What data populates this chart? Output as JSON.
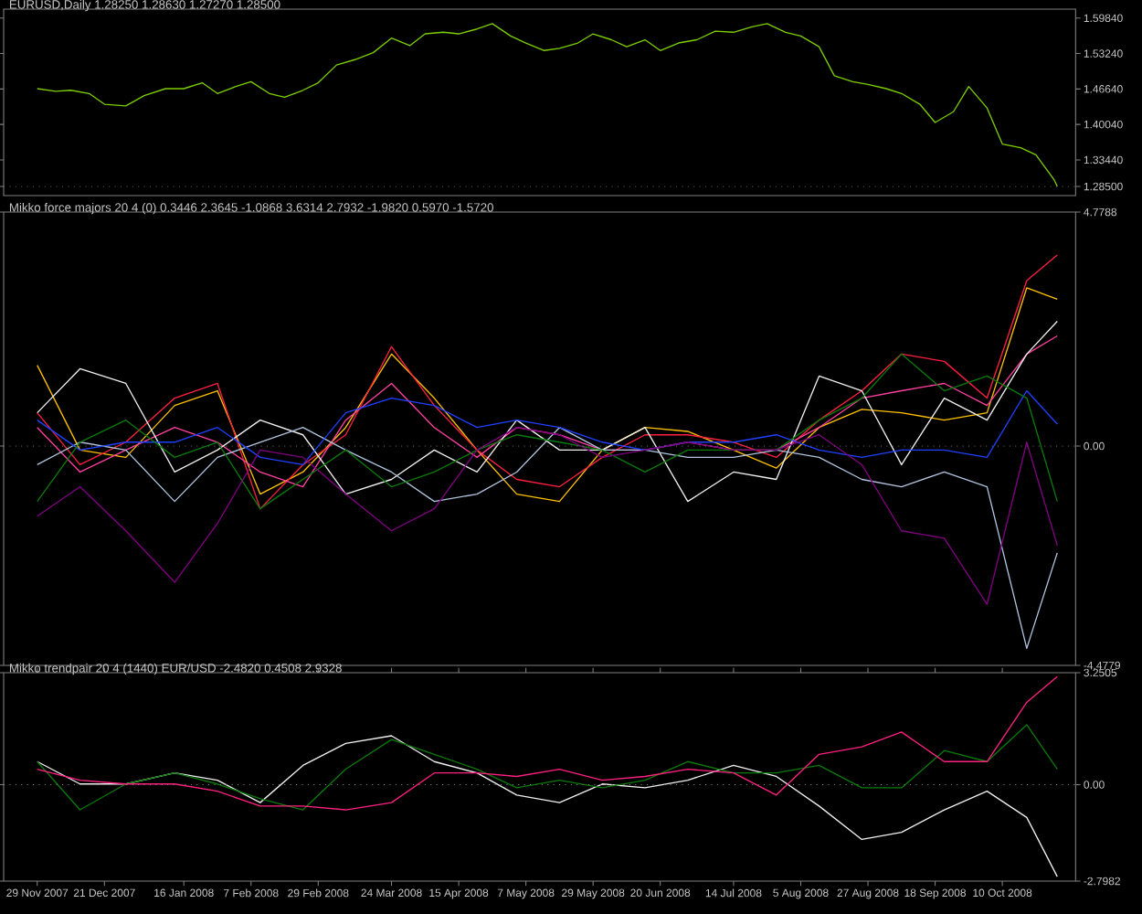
{
  "chart_data": [
    {
      "type": "line",
      "title": "EURUSD,Daily  1.28250 1.28630 1.27270 1.28500",
      "x": [
        "2007-11-29",
        "2007-12-05",
        "2007-12-10",
        "2007-12-16",
        "2007-12-21",
        "2007-12-28",
        "2008-01-03",
        "2008-01-10",
        "2008-01-16",
        "2008-01-22",
        "2008-01-27",
        "2008-02-02",
        "2008-02-07",
        "2008-02-13",
        "2008-02-18",
        "2008-02-24",
        "2008-02-29",
        "2008-03-06",
        "2008-03-12",
        "2008-03-18",
        "2008-03-24",
        "2008-03-30",
        "2008-04-04",
        "2008-04-10",
        "2008-04-15",
        "2008-04-21",
        "2008-04-26",
        "2008-05-02",
        "2008-05-07",
        "2008-05-13",
        "2008-05-18",
        "2008-05-24",
        "2008-05-29",
        "2008-06-04",
        "2008-06-09",
        "2008-06-15",
        "2008-06-20",
        "2008-06-26",
        "2008-07-02",
        "2008-07-08",
        "2008-07-14",
        "2008-07-20",
        "2008-07-25",
        "2008-07-31",
        "2008-08-05",
        "2008-08-11",
        "2008-08-16",
        "2008-08-22",
        "2008-08-27",
        "2008-09-02",
        "2008-09-07",
        "2008-09-13",
        "2008-09-18",
        "2008-09-24",
        "2008-09-29",
        "2008-10-05",
        "2008-10-10",
        "2008-10-16",
        "2008-10-21",
        "2008-10-27",
        "2008-10-28"
      ],
      "series": [
        {
          "color": "#7ccd00",
          "values": [
            1.467,
            1.462,
            1.464,
            1.458,
            1.438,
            1.435,
            1.454,
            1.467,
            1.467,
            1.478,
            1.458,
            1.471,
            1.48,
            1.458,
            1.451,
            1.464,
            1.478,
            1.511,
            1.521,
            1.534,
            1.561,
            1.547,
            1.569,
            1.572,
            1.569,
            1.578,
            1.588,
            1.565,
            1.552,
            1.538,
            1.542,
            1.552,
            1.569,
            1.558,
            1.545,
            1.558,
            1.538,
            1.552,
            1.558,
            1.574,
            1.572,
            1.582,
            1.588,
            1.572,
            1.565,
            1.545,
            1.491,
            1.48,
            1.475,
            1.467,
            1.458,
            1.438,
            1.404,
            1.424,
            1.471,
            1.431,
            1.364,
            1.357,
            1.344,
            1.297,
            1.285
          ]
        }
      ],
      "xlim": [
        "2007-11-18",
        "2008-11-03"
      ],
      "ylim": [
        1.268,
        1.615
      ],
      "yticks": [
        {
          "value": 1.5984,
          "label": "1.59840"
        },
        {
          "value": 1.5324,
          "label": "1.53240"
        },
        {
          "value": 1.4664,
          "label": "1.46640"
        },
        {
          "value": 1.4004,
          "label": "1.40040"
        },
        {
          "value": 1.3344,
          "label": "1.33440"
        },
        {
          "value": 1.285,
          "label": "1.28500"
        }
      ],
      "ref_lines": [
        {
          "axis": "y",
          "value": 1.285,
          "color": "#808080",
          "line_style": "dotted"
        }
      ],
      "tick_labels": "y"
    },
    {
      "type": "line",
      "title": "Mikko force majors 20 4 (0) 0.3446 2.3645 -1.0868 3.6314 2.7932 -1.9820 0.5970 -1.5720",
      "x": [
        "2007-11-29",
        "2007-12-13",
        "2007-12-28",
        "2008-01-13",
        "2008-01-27",
        "2008-02-10",
        "2008-02-24",
        "2008-03-09",
        "2008-03-24",
        "2008-04-07",
        "2008-04-21",
        "2008-05-04",
        "2008-05-18",
        "2008-06-01",
        "2008-06-15",
        "2008-06-29",
        "2008-07-14",
        "2008-07-28",
        "2008-08-11",
        "2008-08-25",
        "2008-09-07",
        "2008-09-21",
        "2008-10-05",
        "2008-10-18",
        "2008-10-28"
      ],
      "series": [
        {
          "color": "#ffc000",
          "values": [
            1.65,
            -0.08,
            -0.23,
            0.83,
            1.13,
            -0.98,
            -0.53,
            0.38,
            1.88,
            0.98,
            -0.08,
            -0.98,
            -1.13,
            -0.08,
            0.38,
            0.3,
            -0.08,
            -0.45,
            0.38,
            0.75,
            0.68,
            0.53,
            0.68,
            3.23,
            3.0
          ]
        },
        {
          "color": "#ff2040",
          "values": [
            0.68,
            -0.38,
            0.08,
            0.98,
            1.28,
            -1.28,
            -0.38,
            0.23,
            2.03,
            0.83,
            -0.08,
            -0.68,
            -0.83,
            -0.23,
            0.23,
            0.23,
            0.08,
            -0.23,
            0.53,
            1.13,
            1.88,
            1.73,
            0.98,
            3.38,
            3.9
          ]
        },
        {
          "color": "#ff40a0",
          "values": [
            0.38,
            -0.53,
            -0.08,
            0.38,
            0.08,
            -0.53,
            -0.83,
            0.53,
            1.28,
            0.38,
            -0.23,
            0.38,
            0.23,
            -0.08,
            -0.08,
            0.08,
            -0.08,
            -0.08,
            0.38,
            0.98,
            1.13,
            1.28,
            0.83,
            1.88,
            2.25
          ]
        },
        {
          "color": "#f0f0f0",
          "values": [
            0.68,
            1.58,
            1.28,
            -0.53,
            -0.08,
            0.53,
            0.23,
            -0.98,
            -0.68,
            -0.08,
            -0.53,
            0.53,
            -0.08,
            -0.08,
            0.38,
            -1.13,
            -0.53,
            -0.68,
            1.43,
            1.13,
            -0.38,
            0.98,
            0.53,
            1.88,
            2.55
          ]
        },
        {
          "color": "#b0c4de",
          "values": [
            -0.38,
            0.08,
            -0.08,
            -1.13,
            -0.23,
            0.08,
            0.38,
            -0.08,
            -0.53,
            -1.13,
            -0.98,
            -0.53,
            0.38,
            -0.08,
            -0.08,
            -0.23,
            -0.23,
            -0.08,
            -0.23,
            -0.68,
            -0.83,
            -0.53,
            -0.83,
            -4.13,
            -2.18
          ]
        },
        {
          "color": "#2040ff",
          "values": [
            0.53,
            -0.08,
            0.08,
            0.08,
            0.38,
            -0.23,
            -0.38,
            0.68,
            0.98,
            0.83,
            0.38,
            0.53,
            0.38,
            0.08,
            -0.08,
            0.08,
            0.08,
            0.23,
            -0.08,
            -0.23,
            -0.08,
            -0.08,
            -0.23,
            1.13,
            0.45
          ]
        },
        {
          "color": "#0a7a0a",
          "values": [
            -1.13,
            0.08,
            0.53,
            -0.23,
            0.08,
            -1.28,
            -0.68,
            -0.08,
            -0.83,
            -0.53,
            -0.08,
            0.23,
            0.08,
            -0.08,
            -0.53,
            -0.08,
            -0.08,
            -0.08,
            0.53,
            0.98,
            1.88,
            1.13,
            1.43,
            0.98,
            -1.13
          ]
        },
        {
          "color": "#800080",
          "values": [
            -1.43,
            -0.83,
            -1.73,
            -2.78,
            -1.58,
            -0.08,
            -0.23,
            -0.98,
            -1.73,
            -1.28,
            -0.08,
            0.38,
            0.23,
            -0.23,
            -0.08,
            0.08,
            -0.08,
            -0.08,
            0.23,
            -0.38,
            -1.73,
            -1.88,
            -3.23,
            0.08,
            -2.03
          ]
        }
      ],
      "xlim": [
        "2007-11-18",
        "2008-11-03"
      ],
      "ylim": [
        -4.4779,
        4.7788
      ],
      "yticks": [
        4.7788,
        {
          "value": 0,
          "label": "0.00"
        },
        -4.4779
      ],
      "ref_lines": [
        {
          "axis": "y",
          "value": 0,
          "color": "#808080",
          "line_style": "dotted"
        }
      ],
      "tick_labels": "y"
    },
    {
      "type": "line",
      "title": "Mikko trendpair 20 4 (1440) EUR/USD -2.4820 0.4508 2.9328",
      "x": [
        "2007-11-29",
        "2007-12-13",
        "2007-12-28",
        "2008-01-13",
        "2008-01-27",
        "2008-02-10",
        "2008-02-24",
        "2008-03-09",
        "2008-03-24",
        "2008-04-07",
        "2008-04-21",
        "2008-05-04",
        "2008-05-18",
        "2008-06-01",
        "2008-06-15",
        "2008-06-29",
        "2008-07-14",
        "2008-07-28",
        "2008-08-11",
        "2008-08-25",
        "2008-09-07",
        "2008-09-21",
        "2008-10-05",
        "2008-10-18",
        "2008-10-28"
      ],
      "series": [
        {
          "color": "#f0f0f0",
          "values": [
            0.67,
            0.02,
            0.02,
            0.34,
            0.13,
            -0.52,
            0.56,
            1.2,
            1.42,
            0.67,
            0.34,
            -0.3,
            -0.52,
            0.02,
            -0.09,
            0.13,
            0.56,
            0.24,
            -0.62,
            -1.59,
            -1.38,
            -0.73,
            -0.19,
            -0.95,
            -2.67
          ]
        },
        {
          "color": "#0a7a0a",
          "values": [
            0.67,
            -0.73,
            0.02,
            0.34,
            0.02,
            -0.41,
            -0.73,
            0.45,
            1.31,
            0.88,
            0.45,
            -0.09,
            0.13,
            -0.09,
            0.13,
            0.67,
            0.34,
            0.34,
            0.56,
            -0.09,
            -0.09,
            0.99,
            0.67,
            1.74,
            0.45
          ]
        },
        {
          "color": "#ff2080",
          "values": [
            0.45,
            0.13,
            0.02,
            0.02,
            -0.19,
            -0.62,
            -0.62,
            -0.73,
            -0.52,
            0.34,
            0.34,
            0.24,
            0.45,
            0.13,
            0.24,
            0.45,
            0.34,
            -0.3,
            0.88,
            1.1,
            1.53,
            0.67,
            0.67,
            2.39,
            3.14
          ]
        }
      ],
      "xlim": [
        "2007-11-18",
        "2008-11-03"
      ],
      "ylim": [
        -2.7982,
        3.2505
      ],
      "xticks": [
        {
          "value": "2007-11-29",
          "label": "29 Nov 2007"
        },
        {
          "value": "2007-12-21",
          "label": "21 Dec 2007"
        },
        {
          "value": "2008-01-16",
          "label": "16 Jan 2008"
        },
        {
          "value": "2008-02-07",
          "label": "7 Feb 2008"
        },
        {
          "value": "2008-02-29",
          "label": "29 Feb 2008"
        },
        {
          "value": "2008-03-24",
          "label": "24 Mar 2008"
        },
        {
          "value": "2008-04-15",
          "label": "15 Apr 2008"
        },
        {
          "value": "2008-05-07",
          "label": "7 May 2008"
        },
        {
          "value": "2008-05-29",
          "label": "29 May 2008"
        },
        {
          "value": "2008-06-20",
          "label": "20 Jun 2008"
        },
        {
          "value": "2008-07-14",
          "label": "14 Jul 2008"
        },
        {
          "value": "2008-08-05",
          "label": "5 Aug 2008"
        },
        {
          "value": "2008-08-27",
          "label": "27 Aug 2008"
        },
        {
          "value": "2008-09-18",
          "label": "18 Sep 2008"
        },
        {
          "value": "2008-10-10",
          "label": "10 Oct 2008"
        }
      ],
      "yticks": [
        3.2505,
        {
          "value": 0,
          "label": "0.00"
        },
        -2.7982
      ],
      "ref_lines": [
        {
          "axis": "y",
          "value": 0,
          "color": "#808080",
          "line_style": "dotted"
        }
      ]
    }
  ]
}
